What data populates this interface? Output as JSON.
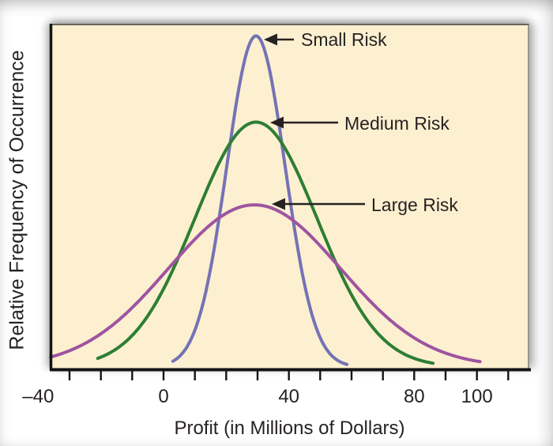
{
  "figure": {
    "background_color": "#ffffff",
    "panel_color": "#fdf0d1",
    "axis_color": "#141414",
    "text_color": "#272222"
  },
  "chart_data": {
    "type": "line",
    "title": "",
    "xlabel": "Profit (in Millions of Dollars)",
    "ylabel": "Relative Frequency of Occurrence",
    "x_axis": {
      "tick_values": [
        -30,
        -20,
        -10,
        0,
        10,
        20,
        30,
        40,
        50,
        60,
        70,
        80,
        90,
        100,
        110
      ],
      "labeled_ticks": [
        {
          "value": -40,
          "label": "–40"
        },
        {
          "value": 0,
          "label": "0"
        },
        {
          "value": 40,
          "label": "40"
        },
        {
          "value": 80,
          "label": "80"
        },
        {
          "value": 100,
          "label": "100"
        }
      ],
      "range": [
        -36,
        117
      ]
    },
    "y_axis": {
      "tick_labels": "none shown"
    },
    "series": [
      {
        "name": "Small Risk",
        "color": "#7473b5",
        "distribution": "normal",
        "mean": 29.5,
        "sd": 9.3,
        "peak_height_fraction": 0.96,
        "x_start": 3,
        "x_end": 58.5
      },
      {
        "name": "Medium Risk",
        "color": "#2d7e33",
        "distribution": "normal",
        "mean": 29.5,
        "sd": 19.5,
        "peak_height_fraction": 0.71,
        "x_start": -21,
        "x_end": 86
      },
      {
        "name": "Large Risk",
        "color": "#9e55a0",
        "distribution": "normal",
        "mean": 29,
        "sd": 27.5,
        "peak_height_fraction": 0.47,
        "x_start": -36,
        "x_end": 101
      }
    ],
    "annotations": [
      {
        "text": "Small Risk",
        "points_to": "peak of Small Risk curve"
      },
      {
        "text": "Medium Risk",
        "points_to": "peak of Medium Risk curve"
      },
      {
        "text": "Large Risk",
        "points_to": "peak of Large Risk curve"
      }
    ],
    "legend_position": "annotated arrows inside plot",
    "grid": false
  }
}
